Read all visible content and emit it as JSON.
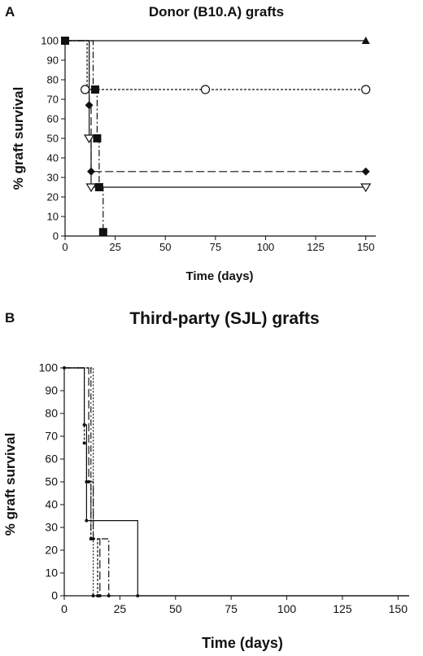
{
  "chart_data": [
    {
      "panel": "A",
      "type": "line",
      "title": "Donor (B10.A) grafts",
      "xlabel": "Time (days)",
      "ylabel": "% graft survival",
      "xlim": [
        0,
        155
      ],
      "ylim": [
        0,
        100
      ],
      "xticks": [
        0,
        25,
        50,
        75,
        100,
        125,
        150
      ],
      "yticks": [
        0,
        10,
        20,
        30,
        40,
        50,
        60,
        70,
        80,
        90,
        100
      ],
      "series": [
        {
          "marker": "triangle-filled",
          "dash": "",
          "step": [
            [
              0,
              100
            ],
            [
              150,
              100
            ]
          ],
          "points": [
            [
              150,
              100
            ]
          ]
        },
        {
          "marker": "circle-open",
          "dash": "3,2",
          "step": [
            [
              0,
              100
            ],
            [
              11,
              100
            ],
            [
              11,
              75
            ],
            [
              150,
              75
            ]
          ],
          "points": [
            [
              10,
              75
            ],
            [
              70,
              75
            ],
            [
              150,
              75
            ]
          ]
        },
        {
          "marker": "diamond-filled",
          "dash": "10,4",
          "step": [
            [
              0,
              100
            ],
            [
              12,
              100
            ],
            [
              12,
              67
            ],
            [
              13,
              67
            ],
            [
              13,
              33
            ],
            [
              150,
              33
            ]
          ],
          "points": [
            [
              12,
              67
            ],
            [
              13,
              33
            ],
            [
              150,
              33
            ]
          ]
        },
        {
          "marker": "triangle-down-open",
          "dash": "",
          "step": [
            [
              0,
              100
            ],
            [
              12,
              100
            ],
            [
              12,
              50
            ],
            [
              13,
              50
            ],
            [
              13,
              25
            ],
            [
              150,
              25
            ]
          ],
          "points": [
            [
              12,
              50
            ],
            [
              13,
              25
            ],
            [
              150,
              25
            ]
          ]
        },
        {
          "marker": "square-filled",
          "dash": "8,3,2,3",
          "step": [
            [
              0,
              100
            ],
            [
              14,
              100
            ],
            [
              14,
              75
            ],
            [
              16,
              75
            ],
            [
              16,
              50
            ],
            [
              17,
              50
            ],
            [
              17,
              25
            ],
            [
              19,
              25
            ],
            [
              19,
              2
            ]
          ],
          "points": [
            [
              0,
              100
            ],
            [
              15,
              75
            ],
            [
              16,
              50
            ],
            [
              17,
              25
            ],
            [
              19,
              2
            ]
          ]
        }
      ]
    },
    {
      "panel": "B",
      "type": "line",
      "title": "Third-party (SJL) grafts",
      "xlabel": "Time (days)",
      "ylabel": "% graft survival",
      "xlim": [
        0,
        155
      ],
      "ylim": [
        0,
        100
      ],
      "xticks": [
        0,
        25,
        50,
        75,
        100,
        125,
        150
      ],
      "yticks": [
        0,
        10,
        20,
        30,
        40,
        50,
        60,
        70,
        80,
        90,
        100
      ],
      "series": [
        {
          "marker": "none",
          "dash": "",
          "step": [
            [
              0,
              100
            ],
            [
              9,
              100
            ],
            [
              9,
              75
            ],
            [
              10,
              75
            ],
            [
              10,
              33
            ],
            [
              33,
              33
            ],
            [
              33,
              0
            ],
            [
              155,
              0
            ]
          ],
          "points": [
            [
              9,
              75
            ],
            [
              10,
              33
            ],
            [
              33,
              0
            ]
          ]
        },
        {
          "marker": "none",
          "dash": "3,2",
          "step": [
            [
              0,
              100
            ],
            [
              9,
              100
            ],
            [
              9,
              67
            ],
            [
              10,
              67
            ],
            [
              10,
              50
            ],
            [
              12,
              50
            ],
            [
              12,
              25
            ],
            [
              15,
              25
            ],
            [
              15,
              0
            ]
          ],
          "points": [
            [
              9,
              67
            ],
            [
              10,
              50
            ],
            [
              12,
              25
            ],
            [
              15,
              0
            ]
          ]
        },
        {
          "marker": "none",
          "dash": "10,4",
          "step": [
            [
              0,
              100
            ],
            [
              11,
              100
            ],
            [
              11,
              50
            ],
            [
              13,
              50
            ],
            [
              13,
              25
            ],
            [
              16,
              25
            ],
            [
              16,
              0
            ]
          ],
          "points": [
            [
              11,
              50
            ],
            [
              13,
              25
            ],
            [
              16,
              0
            ]
          ]
        },
        {
          "marker": "none",
          "dash": "8,3,2,3",
          "step": [
            [
              0,
              100
            ],
            [
              12,
              100
            ],
            [
              12,
              25
            ],
            [
              20,
              25
            ],
            [
              20,
              0
            ]
          ],
          "points": [
            [
              0,
              100
            ],
            [
              12,
              25
            ],
            [
              20,
              0
            ]
          ]
        },
        {
          "marker": "none",
          "dash": "2,2",
          "step": [
            [
              0,
              100
            ],
            [
              13,
              100
            ],
            [
              13,
              0
            ]
          ],
          "points": [
            [
              13,
              0
            ]
          ]
        }
      ]
    }
  ]
}
